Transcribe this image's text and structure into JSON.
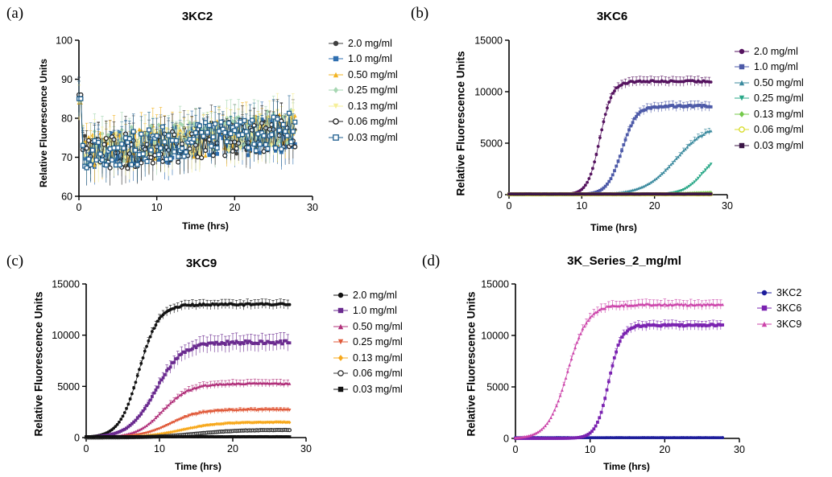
{
  "chart_data": [
    {
      "id": "a",
      "letter": "(a)",
      "type": "scatter",
      "title": "3KC2",
      "xlabel": "Time (hrs)",
      "ylabel": "Relative Fluorescence Units",
      "xlim": [
        0,
        30
      ],
      "ylim": [
        60,
        100
      ],
      "xticks": [
        0,
        10,
        20,
        30
      ],
      "yticks": [
        60,
        70,
        80,
        90,
        100
      ],
      "grid": false,
      "legend_position": "right",
      "series": [
        {
          "name": "2.0 mg/ml",
          "color": "#404040",
          "marker": "circle",
          "model": "noise",
          "base": 71,
          "end": 77,
          "start": 85
        },
        {
          "name": "1.0 mg/ml",
          "color": "#2f6fb0",
          "marker": "square",
          "model": "noise",
          "base": 71,
          "end": 76,
          "start": 86
        },
        {
          "name": "0.50 mg/ml",
          "color": "#f2b424",
          "marker": "triangle",
          "model": "noise",
          "base": 72,
          "end": 77,
          "start": 84
        },
        {
          "name": "0.25 mg/ml",
          "color": "#a7d7b3",
          "marker": "diamond",
          "model": "noise",
          "base": 72,
          "end": 78,
          "start": 85
        },
        {
          "name": "0.13 mg/ml",
          "color": "#f6ef9a",
          "marker": "triangle-down",
          "model": "noise",
          "base": 71,
          "end": 78,
          "start": 84
        },
        {
          "name": "0.06 mg/ml",
          "color": "#222222",
          "marker": "circle-open",
          "model": "noise",
          "base": 70,
          "end": 77,
          "start": 86
        },
        {
          "name": "0.03 mg/ml",
          "color": "#1f5f8f",
          "marker": "square-open",
          "model": "noise",
          "base": 71,
          "end": 77,
          "start": 85
        }
      ]
    },
    {
      "id": "b",
      "letter": "(b)",
      "type": "scatter",
      "title": "3KC6",
      "xlabel": "Time (hrs)",
      "ylabel": "Relative Fluorescence Units",
      "xlim": [
        0,
        30
      ],
      "ylim": [
        0,
        15000
      ],
      "xticks": [
        0,
        10,
        20,
        30
      ],
      "yticks": [
        0,
        5000,
        10000,
        15000
      ],
      "grid": false,
      "legend_position": "right",
      "series": [
        {
          "name": "2.0 mg/ml",
          "color": "#55135f",
          "marker": "circle",
          "model": "sigmoid",
          "plateau": 11000,
          "t0": 12.5,
          "k": 1.2,
          "err": 500
        },
        {
          "name": "1.0 mg/ml",
          "color": "#4d5aa8",
          "marker": "square",
          "model": "sigmoid",
          "plateau": 8600,
          "t0": 15.5,
          "k": 1.0,
          "err": 500
        },
        {
          "name": "0.50 mg/ml",
          "color": "#3b8a9e",
          "marker": "triangle",
          "model": "sigmoid",
          "plateau": 7000,
          "t0": 23,
          "k": 0.45,
          "err": 400
        },
        {
          "name": "0.25 mg/ml",
          "color": "#2aa888",
          "marker": "triangle-down",
          "model": "sigmoid",
          "plateau": 4000,
          "t0": 26.5,
          "k": 0.8,
          "err": 300
        },
        {
          "name": "0.13 mg/ml",
          "color": "#74c94a",
          "marker": "diamond",
          "model": "sigmoid",
          "plateau": 250,
          "t0": 24,
          "k": 0.5,
          "err": 30
        },
        {
          "name": "0.06 mg/ml",
          "color": "#d8dc2a",
          "marker": "circle-open",
          "model": "flat",
          "level": 40,
          "err": 10
        },
        {
          "name": "0.03 mg/ml",
          "color": "#3a1546",
          "marker": "square",
          "model": "flat",
          "level": 60,
          "err": 10
        }
      ]
    },
    {
      "id": "c",
      "letter": "(c)",
      "type": "scatter",
      "title": "3KC9",
      "xlabel": "Time (hrs)",
      "ylabel": "Relative Fluorescence Units",
      "xlim": [
        0,
        30
      ],
      "ylim": [
        0,
        15000
      ],
      "xticks": [
        0,
        10,
        20,
        30
      ],
      "yticks": [
        0,
        5000,
        10000,
        15000
      ],
      "grid": false,
      "legend_position": "right",
      "series": [
        {
          "name": "2.0 mg/ml",
          "color": "#111111",
          "marker": "circle",
          "model": "sigmoid",
          "plateau": 13000,
          "t0": 7.2,
          "k": 0.75,
          "err": 500
        },
        {
          "name": "1.0 mg/ml",
          "color": "#6a2a8f",
          "marker": "square",
          "model": "sigmoid",
          "plateau": 9300,
          "t0": 9.5,
          "k": 0.55,
          "err": 900
        },
        {
          "name": "0.50 mg/ml",
          "color": "#b0307a",
          "marker": "triangle",
          "model": "sigmoid",
          "plateau": 5300,
          "t0": 10.5,
          "k": 0.55,
          "err": 400
        },
        {
          "name": "0.25 mg/ml",
          "color": "#e05a3a",
          "marker": "triangle-down",
          "model": "sigmoid",
          "plateau": 2700,
          "t0": 11.5,
          "k": 0.5,
          "err": 250
        },
        {
          "name": "0.13 mg/ml",
          "color": "#f7a81b",
          "marker": "diamond",
          "model": "sigmoid",
          "plateau": 1500,
          "t0": 13,
          "k": 0.4,
          "err": 150
        },
        {
          "name": "0.06 mg/ml",
          "color": "#333333",
          "marker": "circle-open",
          "model": "sigmoid",
          "plateau": 750,
          "t0": 15,
          "k": 0.35,
          "err": 80
        },
        {
          "name": "0.03 mg/ml",
          "color": "#111111",
          "marker": "square",
          "model": "flat",
          "level": 80,
          "err": 20
        }
      ]
    },
    {
      "id": "d",
      "letter": "(d)",
      "type": "scatter",
      "title": "3K_Series_2_mg/ml",
      "xlabel": "Time (hrs)",
      "ylabel": "Relative Fluorescence Units",
      "xlim": [
        0,
        30
      ],
      "ylim": [
        0,
        15000
      ],
      "xticks": [
        0,
        10,
        20,
        30
      ],
      "yticks": [
        0,
        5000,
        10000,
        15000
      ],
      "grid": false,
      "legend_position": "right",
      "series": [
        {
          "name": "3KC2",
          "color": "#1c1c9c",
          "marker": "circle",
          "model": "flat",
          "level": 70,
          "err": 10
        },
        {
          "name": "3KC6",
          "color": "#7a22b0",
          "marker": "square",
          "model": "sigmoid",
          "plateau": 11000,
          "t0": 12.5,
          "k": 1.2,
          "err": 500
        },
        {
          "name": "3KC9",
          "color": "#cc44aa",
          "marker": "triangle",
          "model": "sigmoid",
          "plateau": 13000,
          "t0": 7.0,
          "k": 0.75,
          "err": 500
        }
      ]
    }
  ]
}
